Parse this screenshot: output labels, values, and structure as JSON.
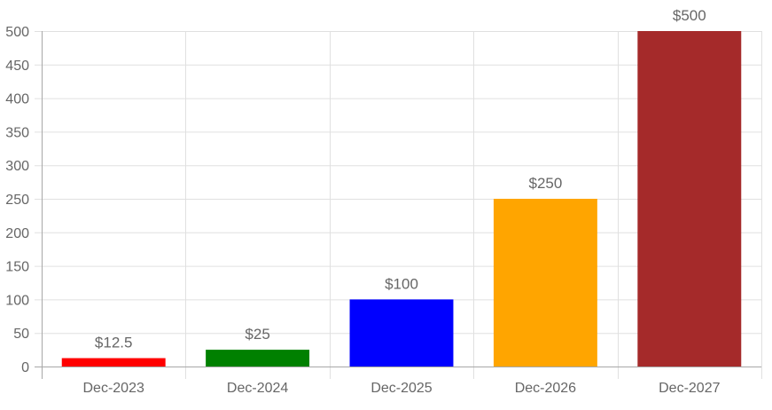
{
  "chart_data": {
    "type": "bar",
    "categories": [
      "Dec-2023",
      "Dec-2024",
      "Dec-2025",
      "Dec-2026",
      "Dec-2027"
    ],
    "values": [
      12.5,
      25,
      100,
      250,
      500
    ],
    "data_labels": [
      "$12.5",
      "$25",
      "$100",
      "$250",
      "$500"
    ],
    "colors": [
      "#ff0000",
      "#008000",
      "#0000ff",
      "#ffa500",
      "#a52a2a"
    ],
    "title": "",
    "xlabel": "",
    "ylabel": "",
    "ylim": [
      0,
      500
    ],
    "yticks": [
      0,
      50,
      100,
      150,
      200,
      250,
      300,
      350,
      400,
      450,
      500
    ],
    "grid": true,
    "legend": "none"
  }
}
